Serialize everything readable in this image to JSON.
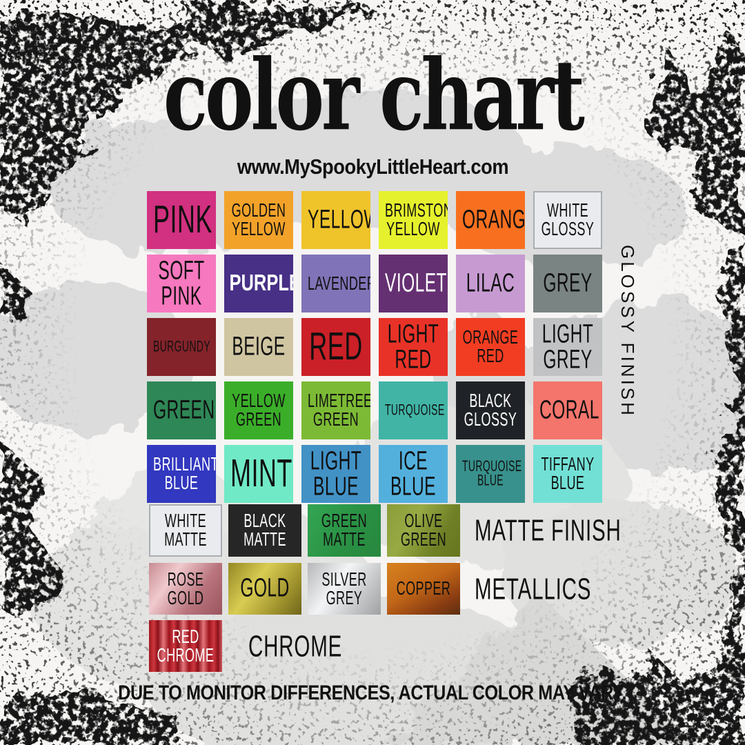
{
  "title": "color chart",
  "url": "www.MySpookyLittleHeart.com",
  "disclaimer": "DUE TO MONITOR DIFFERENCES, ACTUAL COLOR MAY VARY.",
  "background_icons": [
    "bat-silhouettes",
    "grunge-splatter"
  ],
  "sections": {
    "glossy": {
      "label": "GLOSSY FINISH",
      "swatches": [
        {
          "name": "PINK",
          "bg": "#d23080",
          "fg": "#101010",
          "size": "xl"
        },
        {
          "name": "GOLDEN YELLOW",
          "bg": "#f2a229",
          "fg": "#101010",
          "size": "md"
        },
        {
          "name": "YELLOW",
          "bg": "#efc32a",
          "fg": "#101010",
          "size": "lg"
        },
        {
          "name": "BRIMSTONE YELLOW",
          "bg": "#e6f12d",
          "fg": "#101010",
          "size": "md"
        },
        {
          "name": "ORANGE",
          "bg": "#f8701f",
          "fg": "#101010",
          "size": "lg"
        },
        {
          "name": "WHITE GLOSSY",
          "bg": "#e9ebee",
          "fg": "#101010",
          "size": "md",
          "border": "#a9adb2"
        },
        {
          "name": "SOFT PINK",
          "bg": "#f678be",
          "fg": "#101010",
          "size": "lg"
        },
        {
          "name": "PURPLE",
          "bg": "#473086",
          "fg": "#ffffff",
          "size": "lg",
          "bold": true
        },
        {
          "name": "LAVENDER",
          "bg": "#8173b7",
          "fg": "#101010",
          "size": "md"
        },
        {
          "name": "VIOLET",
          "bg": "#653072",
          "fg": "#ffffff",
          "size": "lg"
        },
        {
          "name": "LILAC",
          "bg": "#c79bd2",
          "fg": "#101010",
          "size": "lg"
        },
        {
          "name": "GREY",
          "bg": "#7a8482",
          "fg": "#101010",
          "size": "lg"
        },
        {
          "name": "BURGUNDY",
          "bg": "#84232a",
          "fg": "#101010",
          "size": "sm"
        },
        {
          "name": "BEIGE",
          "bg": "#cfc5a1",
          "fg": "#101010",
          "size": "lg"
        },
        {
          "name": "RED",
          "bg": "#cb2027",
          "fg": "#101010",
          "size": "xl"
        },
        {
          "name": "LIGHT RED",
          "bg": "#e93227",
          "fg": "#101010",
          "size": "lg"
        },
        {
          "name": "ORANGE RED",
          "bg": "#f23d22",
          "fg": "#101010",
          "size": "md"
        },
        {
          "name": "LIGHT GREY",
          "bg": "#c0c2c4",
          "fg": "#101010",
          "size": "lg"
        },
        {
          "name": "GREEN",
          "bg": "#2e8756",
          "fg": "#101010",
          "size": "lg"
        },
        {
          "name": "YELLOW GREEN",
          "bg": "#3bae29",
          "fg": "#101010",
          "size": "md"
        },
        {
          "name": "LIMETREE GREEN",
          "bg": "#7cba35",
          "fg": "#101010",
          "size": "md"
        },
        {
          "name": "TURQUOISE",
          "bg": "#41b4a6",
          "fg": "#101010",
          "size": "sm"
        },
        {
          "name": "BLACK GLOSSY",
          "bg": "#1f2226",
          "fg": "#ffffff",
          "size": "md"
        },
        {
          "name": "CORAL",
          "bg": "#f3756c",
          "fg": "#101010",
          "size": "lg"
        },
        {
          "name": "BRILLIANT BLUE",
          "bg": "#3238bf",
          "fg": "#ffffff",
          "size": "md"
        },
        {
          "name": "MINT",
          "bg": "#70e9c6",
          "fg": "#101010",
          "size": "xl"
        },
        {
          "name": "LIGHT BLUE",
          "bg": "#4292c6",
          "fg": "#101010",
          "size": "lg"
        },
        {
          "name": "ICE BLUE",
          "bg": "#53b0dd",
          "fg": "#101010",
          "size": "lg"
        },
        {
          "name": "TURQUOISE BLUE",
          "bg": "#38918c",
          "fg": "#101010",
          "size": "sm"
        },
        {
          "name": "TIFFANY BLUE",
          "bg": "#72e0d5",
          "fg": "#101010",
          "size": "md"
        }
      ]
    },
    "matte": {
      "label": "MATTE FINISH",
      "swatches": [
        {
          "name": "WHITE MATTE",
          "bg": "#e9ebee",
          "fg": "#101010",
          "size": "md",
          "border": "#a9adb2"
        },
        {
          "name": "BLACK MATTE",
          "bg": "#262626",
          "fg": "#ffffff",
          "size": "md"
        },
        {
          "name": "GREEN MATTE",
          "bg": "linear-gradient(120deg,#33a653 0%,#2a9144 55%,#27873e 100%)",
          "fg": "#101010",
          "size": "md"
        },
        {
          "name": "OLIVE GREEN",
          "bg": "linear-gradient(120deg,#8a9c38 0%,#97aa44 35%,#6f8026 70%,#66761f 100%)",
          "fg": "#101010",
          "size": "md"
        }
      ]
    },
    "metallics": {
      "label": "METALLICS",
      "swatches": [
        {
          "name": "ROSE GOLD",
          "bg": "linear-gradient(125deg,#c68c92 0%,#f0cace 30%,#b9747d 65%,#9a555f 100%)",
          "fg": "#101010",
          "size": "md"
        },
        {
          "name": "GOLD",
          "bg": "linear-gradient(125deg,#948724 0%,#d9cc52 38%,#a59830 70%,#6f651a 100%)",
          "fg": "#101010",
          "size": "lg"
        },
        {
          "name": "SILVER GREY",
          "bg": "linear-gradient(125deg,#b5b7b9 0%,#f2f4f5 40%,#c0c2c4 75%,#9fa1a3 100%)",
          "fg": "#101010",
          "size": "md"
        },
        {
          "name": "COPPER",
          "bg": "linear-gradient(150deg,#d8821f 0%,#c16617 45%,#8a3d12 78%,#5c2e10 100%)",
          "fg": "#101010",
          "size": "md"
        }
      ]
    },
    "chrome": {
      "label": "CHROME",
      "swatches": [
        {
          "name": "RED CHROME",
          "bg": "repeating-linear-gradient(90deg,#9e151d 0px,#ce3740 7px,#8c1018 13px,#e4757b 21px,#9e151d 29px)",
          "fg": "#ffffff",
          "size": "md"
        }
      ]
    }
  }
}
